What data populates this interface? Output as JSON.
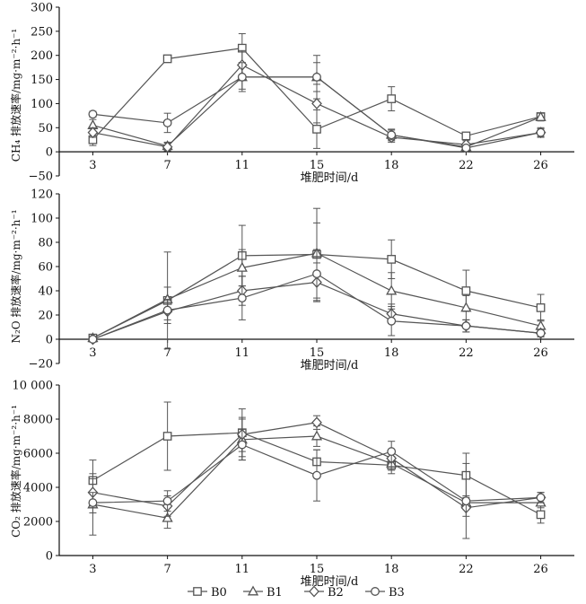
{
  "legend": [
    "B0",
    "B1",
    "B2",
    "B3"
  ],
  "colors": {
    "line": "#555555",
    "marker_fill": "#ffffff",
    "axis": "#111111"
  },
  "chart_data": [
    {
      "type": "line",
      "title": "",
      "xlabel": "堆肥时间/d",
      "ylabel": "CH₄ 排放速率/mg·m⁻²·h⁻¹",
      "x": [
        3,
        7,
        11,
        15,
        18,
        22,
        26
      ],
      "ylim": [
        -50,
        300
      ],
      "yticks": [
        -50,
        0,
        50,
        100,
        150,
        200,
        250,
        300
      ],
      "ytick_labels": [
        "−50",
        "0",
        "50",
        "100",
        "150",
        "200",
        "250",
        "300"
      ],
      "grid": false,
      "series": [
        {
          "name": "B0",
          "marker": "square",
          "values": [
            25,
            193,
            215,
            47,
            110,
            33,
            73
          ],
          "err": [
            12,
            6,
            30,
            40,
            25,
            6,
            6
          ]
        },
        {
          "name": "B1",
          "marker": "triangle",
          "values": [
            55,
            12,
            155,
            155,
            35,
            10,
            72
          ],
          "err": [
            12,
            8,
            25,
            45,
            12,
            8,
            8
          ]
        },
        {
          "name": "B2",
          "marker": "diamond",
          "values": [
            40,
            10,
            180,
            100,
            30,
            15,
            40
          ],
          "err": [
            10,
            8,
            30,
            40,
            10,
            8,
            8
          ]
        },
        {
          "name": "B3",
          "marker": "circle",
          "values": [
            78,
            60,
            155,
            155,
            35,
            8,
            40
          ],
          "err": [
            6,
            20,
            30,
            30,
            10,
            5,
            10
          ]
        }
      ]
    },
    {
      "type": "line",
      "title": "",
      "xlabel": "堆肥时间/d",
      "ylabel": "N₂O 排放速率/mg·m⁻²·h⁻¹",
      "x": [
        3,
        7,
        11,
        15,
        18,
        22,
        26
      ],
      "ylim": [
        -20,
        120
      ],
      "yticks": [
        -20,
        0,
        20,
        40,
        60,
        80,
        100,
        120
      ],
      "ytick_labels": [
        "−20",
        "0",
        "20",
        "40",
        "60",
        "80",
        "100",
        "120"
      ],
      "grid": false,
      "series": [
        {
          "name": "B0",
          "marker": "square",
          "values": [
            1,
            32,
            69,
            70,
            66,
            40,
            26
          ],
          "err": [
            1,
            40,
            25,
            38,
            16,
            17,
            11
          ]
        },
        {
          "name": "B1",
          "marker": "triangle",
          "values": [
            1,
            33,
            59,
            71,
            40,
            26,
            11
          ],
          "err": [
            1,
            10,
            15,
            25,
            15,
            10,
            5
          ]
        },
        {
          "name": "B2",
          "marker": "diamond",
          "values": [
            0,
            23,
            40,
            47,
            21,
            11,
            5
          ],
          "err": [
            1,
            10,
            12,
            16,
            8,
            5,
            3
          ]
        },
        {
          "name": "B3",
          "marker": "circle",
          "values": [
            0,
            24,
            34,
            54,
            15,
            11,
            5
          ],
          "err": [
            1,
            8,
            18,
            20,
            12,
            5,
            3
          ]
        }
      ]
    },
    {
      "type": "line",
      "title": "",
      "xlabel": "堆肥时间/d",
      "ylabel": "CO₂ 排放速率/mg·m⁻²·h⁻¹",
      "x": [
        3,
        7,
        11,
        15,
        18,
        22,
        26
      ],
      "ylim": [
        0,
        10000
      ],
      "yticks": [
        0,
        2000,
        4000,
        6000,
        8000,
        10000
      ],
      "ytick_labels": [
        "0",
        "2000",
        "4000",
        "6000",
        "8000",
        "10 000"
      ],
      "grid": false,
      "series": [
        {
          "name": "B0",
          "marker": "square",
          "values": [
            4400,
            7000,
            7200,
            5500,
            5300,
            4700,
            2400
          ],
          "err": [
            1200,
            2000,
            1400,
            700,
            500,
            1300,
            500
          ]
        },
        {
          "name": "B1",
          "marker": "triangle",
          "values": [
            3000,
            2200,
            6800,
            7000,
            5400,
            3100,
            3100
          ],
          "err": [
            1800,
            600,
            1200,
            600,
            400,
            400,
            300
          ]
        },
        {
          "name": "B2",
          "marker": "diamond",
          "values": [
            3700,
            2900,
            7100,
            7800,
            5700,
            2800,
            3400
          ],
          "err": [
            800,
            600,
            1000,
            400,
            500,
            500,
            300
          ]
        },
        {
          "name": "B3",
          "marker": "circle",
          "values": [
            3100,
            3200,
            6500,
            4700,
            6100,
            3200,
            3400
          ],
          "err": [
            600,
            600,
            900,
            1500,
            600,
            2200,
            300
          ]
        }
      ]
    }
  ]
}
